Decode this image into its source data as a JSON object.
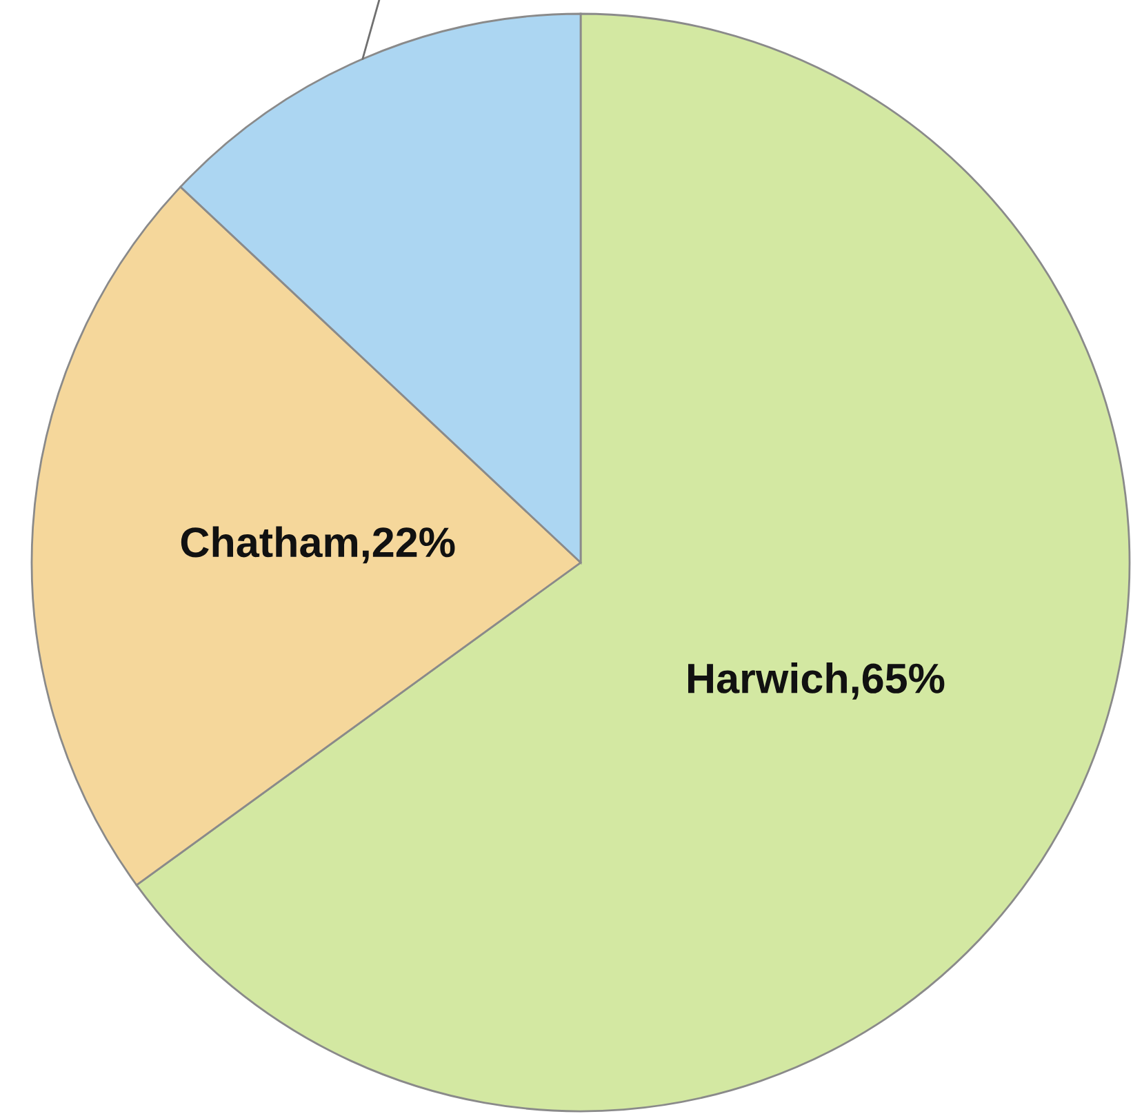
{
  "chart_data": {
    "type": "pie",
    "categories": [
      "Harwich",
      "Chatham",
      null
    ],
    "values": [
      65,
      22,
      13
    ],
    "colors": [
      "#d3e8a2",
      "#f5d79b",
      "#acd6f2"
    ],
    "value_labels": [
      "65%",
      "22%",
      null
    ],
    "legend": false
  }
}
